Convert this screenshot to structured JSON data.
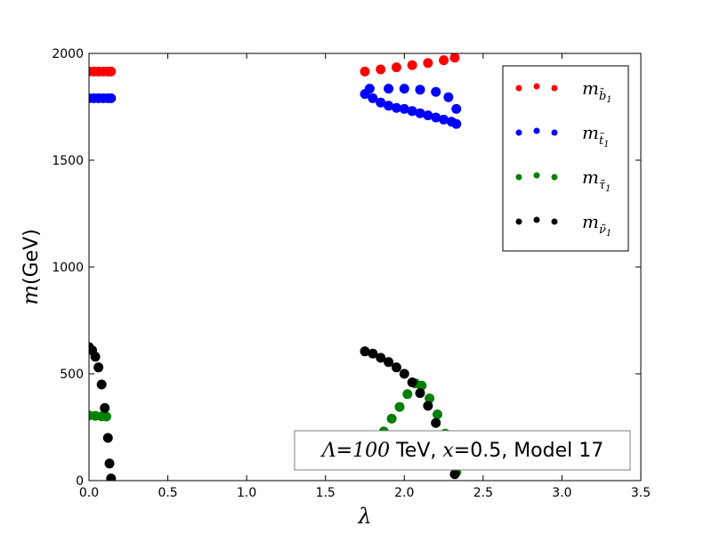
{
  "chart_data": {
    "type": "scatter",
    "xlabel": "λ",
    "ylabel_math": "m",
    "ylabel_text": "(GeV)",
    "xlim": [
      0,
      3.5
    ],
    "ylim": [
      0,
      2000
    ],
    "xticks": [
      "0.0",
      "0.5",
      "1.0",
      "1.5",
      "2.0",
      "2.5",
      "3.0",
      "3.5"
    ],
    "xtick_values": [
      0,
      0.5,
      1.0,
      1.5,
      2.0,
      2.5,
      3.0,
      3.5
    ],
    "yticks": [
      "0",
      "500",
      "1000",
      "1500",
      "2000"
    ],
    "ytick_values": [
      0,
      500,
      1000,
      1500,
      2000
    ],
    "grid": false,
    "legend_position": "top-right",
    "annotation": {
      "lambda_math": "Λ",
      "eq1": "=",
      "lambda_value": "100",
      "unit": " TeV, ",
      "x_math": "x",
      "rest": "=0.5, Model 17"
    },
    "series": [
      {
        "name": "m",
        "sub": "b̃",
        "subsub": "1",
        "color": "#ff0000",
        "points": [
          [
            0.0,
            1915
          ],
          [
            0.03,
            1915
          ],
          [
            0.06,
            1915
          ],
          [
            0.09,
            1915
          ],
          [
            0.12,
            1915
          ],
          [
            0.14,
            1915
          ],
          [
            1.75,
            1915
          ],
          [
            1.85,
            1925
          ],
          [
            1.95,
            1935
          ],
          [
            2.05,
            1945
          ],
          [
            2.15,
            1955
          ],
          [
            2.25,
            1968
          ],
          [
            2.32,
            1980
          ]
        ]
      },
      {
        "name": "m",
        "sub": "t̃",
        "subsub": "1",
        "color": "#0000ff",
        "points": [
          [
            0.0,
            1790
          ],
          [
            0.03,
            1790
          ],
          [
            0.06,
            1790
          ],
          [
            0.09,
            1790
          ],
          [
            0.12,
            1790
          ],
          [
            0.14,
            1790
          ],
          [
            1.75,
            1810
          ],
          [
            1.8,
            1790
          ],
          [
            1.85,
            1770
          ],
          [
            1.9,
            1755
          ],
          [
            1.95,
            1745
          ],
          [
            2.0,
            1740
          ],
          [
            2.05,
            1730
          ],
          [
            2.1,
            1720
          ],
          [
            2.15,
            1710
          ],
          [
            2.2,
            1700
          ],
          [
            2.25,
            1690
          ],
          [
            2.3,
            1680
          ],
          [
            2.33,
            1670
          ],
          [
            1.78,
            1835
          ],
          [
            1.9,
            1835
          ],
          [
            2.0,
            1835
          ],
          [
            2.1,
            1830
          ],
          [
            2.2,
            1820
          ],
          [
            2.28,
            1795
          ],
          [
            2.33,
            1740
          ]
        ]
      },
      {
        "name": "m",
        "sub": "τ̃",
        "subsub": "1",
        "color": "#008000",
        "points": [
          [
            0.0,
            305
          ],
          [
            0.04,
            303
          ],
          [
            0.08,
            301
          ],
          [
            0.11,
            300
          ],
          [
            1.77,
            115
          ],
          [
            1.82,
            170
          ],
          [
            1.87,
            230
          ],
          [
            1.92,
            290
          ],
          [
            1.97,
            345
          ],
          [
            2.02,
            405
          ],
          [
            2.07,
            455
          ],
          [
            2.11,
            445
          ],
          [
            2.16,
            385
          ],
          [
            2.21,
            310
          ],
          [
            2.26,
            220
          ],
          [
            2.3,
            120
          ],
          [
            2.33,
            40
          ]
        ]
      },
      {
        "name": "m",
        "sub": "ν̃",
        "subsub": "1",
        "color": "#000000",
        "points": [
          [
            0.0,
            625
          ],
          [
            0.02,
            610
          ],
          [
            0.04,
            580
          ],
          [
            0.06,
            530
          ],
          [
            0.08,
            450
          ],
          [
            0.1,
            340
          ],
          [
            0.12,
            200
          ],
          [
            0.13,
            80
          ],
          [
            0.14,
            10
          ],
          [
            1.75,
            605
          ],
          [
            1.8,
            595
          ],
          [
            1.85,
            575
          ],
          [
            1.9,
            555
          ],
          [
            1.95,
            530
          ],
          [
            2.0,
            500
          ],
          [
            2.05,
            460
          ],
          [
            2.1,
            410
          ],
          [
            2.15,
            350
          ],
          [
            2.2,
            270
          ],
          [
            2.25,
            180
          ],
          [
            2.29,
            100
          ],
          [
            2.32,
            30
          ]
        ]
      }
    ]
  }
}
